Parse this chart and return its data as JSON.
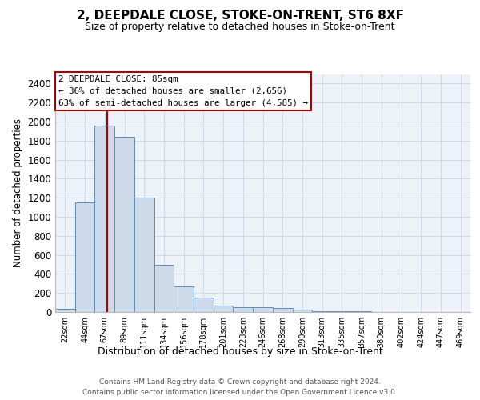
{
  "title": "2, DEEPDALE CLOSE, STOKE-ON-TRENT, ST6 8XF",
  "subtitle": "Size of property relative to detached houses in Stoke-on-Trent",
  "xlabel": "Distribution of detached houses by size in Stoke-on-Trent",
  "ylabel": "Number of detached properties",
  "footer_line1": "Contains HM Land Registry data © Crown copyright and database right 2024.",
  "footer_line2": "Contains public sector information licensed under the Open Government Licence v3.0.",
  "annotation_title": "2 DEEPDALE CLOSE: 85sqm",
  "annotation_line1": "← 36% of detached houses are smaller (2,656)",
  "annotation_line2": "63% of semi-detached houses are larger (4,585) →",
  "bar_color": "#cddaea",
  "bar_edge_color": "#5b8db8",
  "redline_color": "#aa0000",
  "annotation_box_edgecolor": "#aa0000",
  "grid_color": "#d0d8e4",
  "bg_color": "#edf2f8",
  "categories": [
    "22sqm",
    "44sqm",
    "67sqm",
    "89sqm",
    "111sqm",
    "134sqm",
    "156sqm",
    "178sqm",
    "201sqm",
    "223sqm",
    "246sqm",
    "268sqm",
    "290sqm",
    "313sqm",
    "335sqm",
    "357sqm",
    "380sqm",
    "402sqm",
    "424sqm",
    "447sqm",
    "469sqm"
  ],
  "values": [
    30,
    1150,
    1960,
    1840,
    1200,
    500,
    265,
    150,
    68,
    50,
    50,
    38,
    28,
    10,
    12,
    5,
    3,
    2,
    2,
    1,
    1
  ],
  "ylim": [
    0,
    2500
  ],
  "yticks": [
    0,
    200,
    400,
    600,
    800,
    1000,
    1200,
    1400,
    1600,
    1800,
    2000,
    2200,
    2400
  ],
  "redline_x": 2.15,
  "fig_width": 6.0,
  "fig_height": 5.0,
  "dpi": 100
}
